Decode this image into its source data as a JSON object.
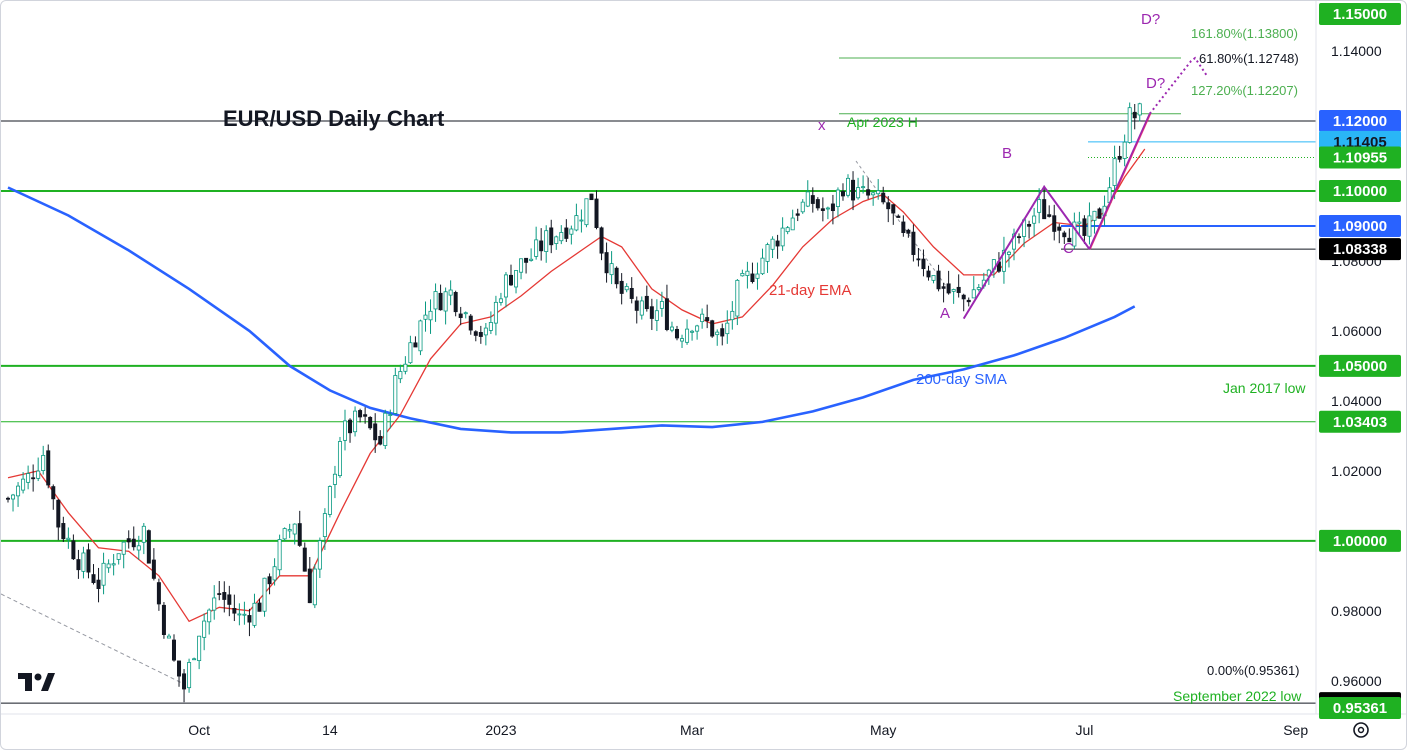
{
  "chart_data": {
    "type": "candlestick",
    "title": "EUR/USD Daily Chart",
    "colors": {
      "up": "#089981",
      "down": "#131722",
      "green_level": "#1fb122",
      "blue": "#2962ff",
      "ema": "#e53935",
      "purple": "#9c27b0"
    },
    "y_axis": {
      "ylim": [
        0.9505,
        1.1543
      ],
      "ticks": [
        "1.14000",
        "1.08000",
        "1.06000",
        "1.04000",
        "1.02000",
        "0.98000",
        "0.96000"
      ],
      "tick_values": [
        1.14,
        1.08,
        1.06,
        1.04,
        1.02,
        0.98,
        0.96
      ]
    },
    "x_axis": {
      "ticks": [
        "Oct",
        "14",
        "2023",
        "Mar",
        "May",
        "Jul",
        "Sep"
      ],
      "tick_bars": [
        38,
        64,
        98,
        136,
        174,
        214,
        256
      ]
    },
    "horizontal_levels": [
      {
        "value": 1.15,
        "label": "1.15000",
        "badge_bg": "#1fb122",
        "badge_fg": "#ffffff",
        "line": "none"
      },
      {
        "value": 1.12,
        "label": "1.12000",
        "badge_bg": "#2962ff",
        "badge_fg": "#ffffff",
        "line": "black"
      },
      {
        "value": 1.11405,
        "label": "1.11405",
        "badge_bg": "#2ab6f6",
        "badge_fg": "#131722",
        "line": "cyan"
      },
      {
        "value": 1.10955,
        "label": "1.10955",
        "badge_bg": "#1fb122",
        "badge_fg": "#ffffff",
        "line": "green-dotted"
      },
      {
        "value": 1.1,
        "label": "1.10000",
        "badge_bg": "#1fb122",
        "badge_fg": "#ffffff",
        "line": "green-thick"
      },
      {
        "value": 1.09,
        "label": "1.09000",
        "badge_bg": "#2962ff",
        "badge_fg": "#ffffff",
        "line": "blue"
      },
      {
        "value": 1.08338,
        "label": "1.08338",
        "badge_bg": "#000000",
        "badge_fg": "#ffffff",
        "line": "black"
      },
      {
        "value": 1.05,
        "label": "1.05000",
        "badge_bg": "#1fb122",
        "badge_fg": "#ffffff",
        "line": "green-thick"
      },
      {
        "value": 1.03403,
        "label": "1.03403",
        "badge_bg": "#1fb122",
        "badge_fg": "#ffffff",
        "line": "green-thin"
      },
      {
        "value": 1.0,
        "label": "1.00000",
        "badge_bg": "#1fb122",
        "badge_fg": "#ffffff",
        "line": "green-thick"
      },
      {
        "value": 0.95361,
        "label": "0.95361",
        "badge_bg": "#000000",
        "badge_fg": "#ffffff",
        "line": "black"
      },
      {
        "value": 0.95361,
        "label": "0.95361",
        "badge_bg": "#1fb122",
        "badge_fg": "#ffffff",
        "line": "none",
        "note": "second badge partially hidden at bottom"
      }
    ],
    "fibonacci": [
      {
        "value": 1.138,
        "label": "161.80%(1.13800)"
      },
      {
        "value": 1.12748,
        "label": "61.80%(1.12748)"
      },
      {
        "value": 1.12207,
        "label": "127.20%(1.12207)"
      },
      {
        "value": 0.95361,
        "label": "0.00%(0.95361)"
      }
    ],
    "annotations": [
      {
        "text": "Apr 2023 H",
        "color": "green"
      },
      {
        "text": "Jan 2017 low",
        "color": "green"
      },
      {
        "text": "September 2022 low",
        "color": "green"
      },
      {
        "text": "21-day EMA",
        "color": "red"
      },
      {
        "text": "200-day SMA",
        "color": "blue"
      },
      {
        "text": "x",
        "color": "purple"
      },
      {
        "text": "A",
        "color": "purple"
      },
      {
        "text": "B",
        "color": "purple"
      },
      {
        "text": "C",
        "color": "purple"
      },
      {
        "text": "D?",
        "color": "purple"
      },
      {
        "text": "D?",
        "color": "purple"
      }
    ],
    "pattern_points": [
      {
        "name": "A",
        "bar": 190,
        "value": 1.0635
      },
      {
        "name": "B",
        "bar": 206,
        "value": 1.1012
      },
      {
        "name": "C",
        "bar": 215,
        "value": 1.0834
      },
      {
        "name": "D?",
        "bar": 227,
        "value": 1.1221
      },
      {
        "name": "D?",
        "bar": 236,
        "value": 1.138
      }
    ],
    "close_path": [
      [
        0,
        1.012
      ],
      [
        4,
        1.018
      ],
      [
        7,
        1.025
      ],
      [
        10,
        1.005
      ],
      [
        14,
        0.995
      ],
      [
        18,
        0.988
      ],
      [
        22,
        0.998
      ],
      [
        27,
        1.003
      ],
      [
        30,
        0.982
      ],
      [
        33,
        0.965
      ],
      [
        35,
        0.958
      ],
      [
        38,
        0.975
      ],
      [
        42,
        0.985
      ],
      [
        46,
        0.978
      ],
      [
        50,
        0.982
      ],
      [
        54,
        0.998
      ],
      [
        57,
        1.006
      ],
      [
        60,
        0.985
      ],
      [
        63,
        1.005
      ],
      [
        66,
        1.03
      ],
      [
        70,
        1.035
      ],
      [
        74,
        1.028
      ],
      [
        77,
        1.045
      ],
      [
        80,
        1.056
      ],
      [
        84,
        1.068
      ],
      [
        88,
        1.071
      ],
      [
        91,
        1.065
      ],
      [
        95,
        1.058
      ],
      [
        98,
        1.072
      ],
      [
        101,
        1.078
      ],
      [
        104,
        1.081
      ],
      [
        107,
        1.086
      ],
      [
        110,
        1.089
      ],
      [
        113,
        1.092
      ],
      [
        116,
        1.099
      ],
      [
        118,
        1.084
      ],
      [
        121,
        1.072
      ],
      [
        124,
        1.068
      ],
      [
        127,
        1.064
      ],
      [
        130,
        1.066
      ],
      [
        133,
        1.059
      ],
      [
        136,
        1.063
      ],
      [
        139,
        1.062
      ],
      [
        142,
        1.057
      ],
      [
        145,
        1.071
      ],
      [
        148,
        1.077
      ],
      [
        151,
        1.083
      ],
      [
        154,
        1.089
      ],
      [
        157,
        1.095
      ],
      [
        160,
        1.097
      ],
      [
        163,
        1.093
      ],
      [
        166,
        1.102
      ],
      [
        169,
        1.099
      ],
      [
        172,
        1.098
      ],
      [
        175,
        1.095
      ],
      [
        178,
        1.086
      ],
      [
        181,
        1.082
      ],
      [
        184,
        1.075
      ],
      [
        187,
        1.071
      ],
      [
        190,
        1.069
      ],
      [
        193,
        1.073
      ],
      [
        196,
        1.078
      ],
      [
        199,
        1.083
      ],
      [
        202,
        1.089
      ],
      [
        205,
        1.095
      ],
      [
        208,
        1.092
      ],
      [
        211,
        1.089
      ],
      [
        214,
        1.087
      ],
      [
        217,
        1.094
      ],
      [
        219,
        1.102
      ],
      [
        221,
        1.112
      ],
      [
        223,
        1.121
      ],
      [
        225,
        1.122
      ]
    ],
    "ema_path": [
      [
        0,
        1.018
      ],
      [
        6,
        1.02
      ],
      [
        12,
        1.008
      ],
      [
        18,
        0.998
      ],
      [
        24,
        0.997
      ],
      [
        30,
        0.99
      ],
      [
        36,
        0.977
      ],
      [
        42,
        0.981
      ],
      [
        48,
        0.98
      ],
      [
        54,
        0.99
      ],
      [
        60,
        0.99
      ],
      [
        66,
        1.008
      ],
      [
        72,
        1.025
      ],
      [
        78,
        1.036
      ],
      [
        84,
        1.052
      ],
      [
        90,
        1.062
      ],
      [
        96,
        1.064
      ],
      [
        102,
        1.07
      ],
      [
        108,
        1.077
      ],
      [
        114,
        1.083
      ],
      [
        118,
        1.087
      ],
      [
        122,
        1.084
      ],
      [
        128,
        1.072
      ],
      [
        134,
        1.066
      ],
      [
        140,
        1.062
      ],
      [
        146,
        1.064
      ],
      [
        152,
        1.073
      ],
      [
        158,
        1.084
      ],
      [
        164,
        1.092
      ],
      [
        170,
        1.097
      ],
      [
        174,
        1.099
      ],
      [
        178,
        1.094
      ],
      [
        184,
        1.084
      ],
      [
        190,
        1.076
      ],
      [
        196,
        1.076
      ],
      [
        202,
        1.085
      ],
      [
        208,
        1.091
      ],
      [
        214,
        1.09
      ],
      [
        218,
        1.094
      ],
      [
        222,
        1.104
      ],
      [
        226,
        1.112
      ]
    ],
    "sma_path": [
      [
        0,
        1.101
      ],
      [
        12,
        1.093
      ],
      [
        24,
        1.083
      ],
      [
        36,
        1.072
      ],
      [
        48,
        1.06
      ],
      [
        56,
        1.05
      ],
      [
        64,
        1.043
      ],
      [
        72,
        1.038
      ],
      [
        80,
        1.035
      ],
      [
        90,
        1.032
      ],
      [
        100,
        1.031
      ],
      [
        110,
        1.031
      ],
      [
        120,
        1.032
      ],
      [
        130,
        1.033
      ],
      [
        140,
        1.0325
      ],
      [
        150,
        1.034
      ],
      [
        160,
        1.037
      ],
      [
        170,
        1.041
      ],
      [
        180,
        1.046
      ],
      [
        190,
        1.049
      ],
      [
        200,
        1.053
      ],
      [
        210,
        1.058
      ],
      [
        220,
        1.064
      ],
      [
        224,
        1.067
      ]
    ]
  }
}
